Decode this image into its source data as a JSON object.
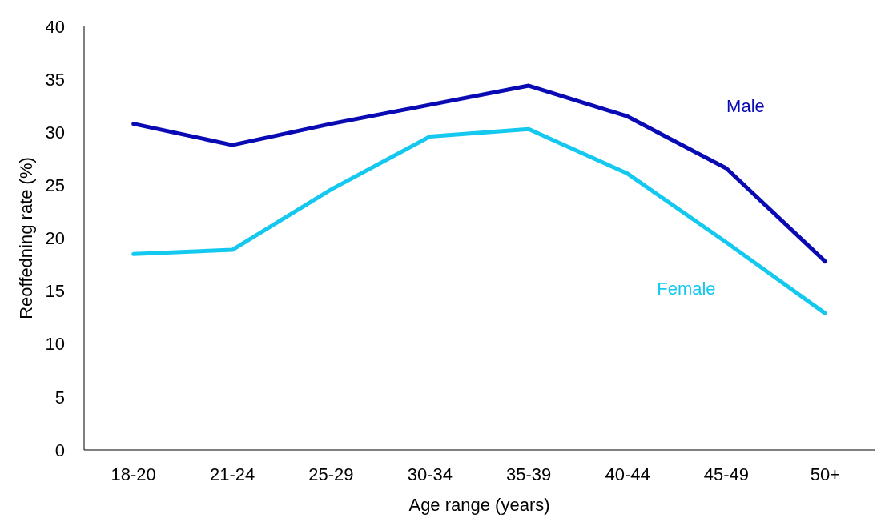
{
  "chart_data": {
    "type": "line",
    "xlabel": "Age range  (years)",
    "ylabel": "Reoffedning  rate (%)",
    "categories": [
      "18-20",
      "21-24",
      "25-29",
      "30-34",
      "35-39",
      "40-44",
      "45-49",
      "50+"
    ],
    "ylim": [
      0,
      40
    ],
    "yticks": [
      0,
      5,
      10,
      15,
      20,
      25,
      30,
      35,
      40
    ],
    "series": [
      {
        "name": "Male",
        "color": "#0a0ab4",
        "values": [
          30.8,
          28.8,
          30.8,
          32.6,
          34.4,
          31.5,
          26.6,
          17.8
        ]
      },
      {
        "name": "Female",
        "color": "#14c8f0",
        "values": [
          18.5,
          18.9,
          24.6,
          29.6,
          30.3,
          26.1,
          19.6,
          12.9
        ]
      }
    ]
  }
}
